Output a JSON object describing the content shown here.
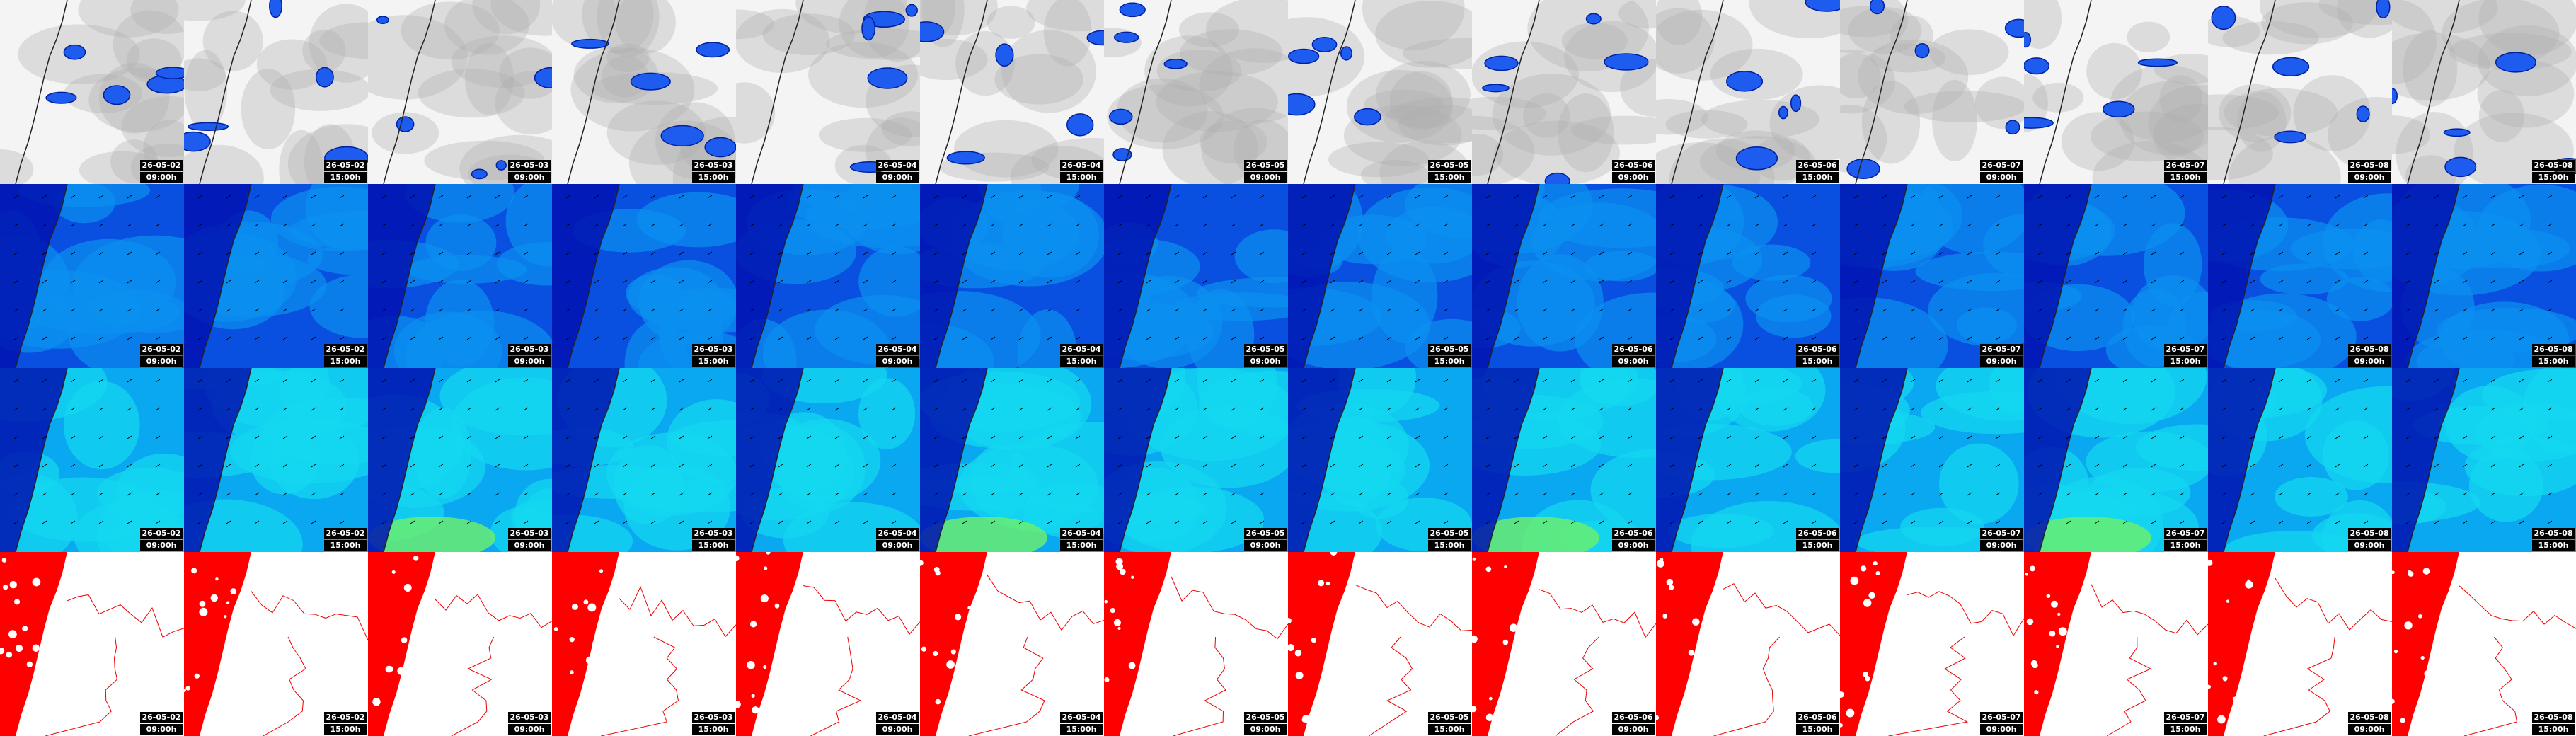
{
  "columns": [
    {
      "date": "26-05-02",
      "time": "09:00h"
    },
    {
      "date": "26-05-02",
      "time": "15:00h"
    },
    {
      "date": "26-05-03",
      "time": "09:00h"
    },
    {
      "date": "26-05-03",
      "time": "15:00h"
    },
    {
      "date": "26-05-04",
      "time": "09:00h"
    },
    {
      "date": "26-05-04",
      "time": "15:00h"
    },
    {
      "date": "26-05-05",
      "time": "09:00h"
    },
    {
      "date": "26-05-05",
      "time": "15:00h"
    },
    {
      "date": "26-05-06",
      "time": "09:00h"
    },
    {
      "date": "26-05-06",
      "time": "15:00h"
    },
    {
      "date": "26-05-07",
      "time": "09:00h"
    },
    {
      "date": "26-05-07",
      "time": "15:00h"
    },
    {
      "date": "26-05-08",
      "time": "09:00h"
    },
    {
      "date": "26-05-08",
      "time": "15:00h"
    }
  ]
}
